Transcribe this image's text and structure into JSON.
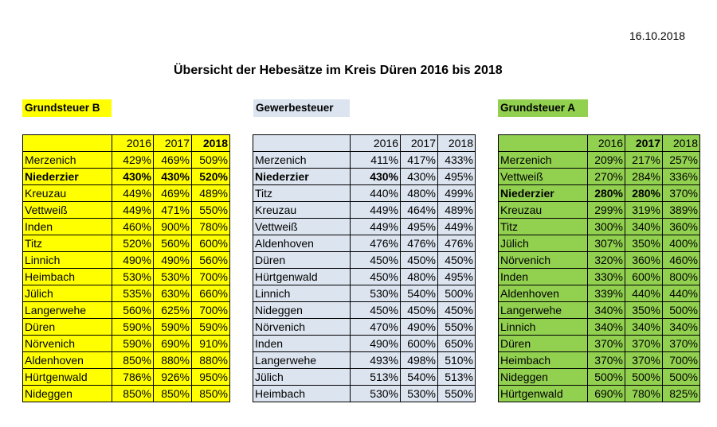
{
  "date": "16.10.2018",
  "title": "Übersicht der Hebesätze im Kreis Düren 2016 bis 2018",
  "sections": [
    {
      "id": "b",
      "label": "Grundsteuer B",
      "header": [
        "",
        "2016",
        "2017",
        "2018"
      ],
      "bold_header_col": 3,
      "rows": [
        {
          "name": "Merzenich",
          "v": [
            "429%",
            "469%",
            "509%"
          ],
          "bold": false
        },
        {
          "name": "Niederzier",
          "v": [
            "430%",
            "430%",
            "520%"
          ],
          "bold": true
        },
        {
          "name": "Kreuzau",
          "v": [
            "449%",
            "469%",
            "489%"
          ],
          "bold": false
        },
        {
          "name": "Vettweiß",
          "v": [
            "449%",
            "471%",
            "550%"
          ],
          "bold": false
        },
        {
          "name": "Inden",
          "v": [
            "460%",
            "900%",
            "780%"
          ],
          "bold": false
        },
        {
          "name": "Titz",
          "v": [
            "520%",
            "560%",
            "600%"
          ],
          "bold": false
        },
        {
          "name": "Linnich",
          "v": [
            "490%",
            "490%",
            "560%"
          ],
          "bold": false
        },
        {
          "name": "Heimbach",
          "v": [
            "530%",
            "530%",
            "700%"
          ],
          "bold": false
        },
        {
          "name": "Jülich",
          "v": [
            "535%",
            "630%",
            "660%"
          ],
          "bold": false
        },
        {
          "name": "Langerwehe",
          "v": [
            "560%",
            "625%",
            "700%"
          ],
          "bold": false
        },
        {
          "name": "Düren",
          "v": [
            "590%",
            "590%",
            "590%"
          ],
          "bold": false
        },
        {
          "name": "Nörvenich",
          "v": [
            "590%",
            "690%",
            "910%"
          ],
          "bold": false
        },
        {
          "name": "Aldenhoven",
          "v": [
            "850%",
            "880%",
            "880%"
          ],
          "bold": false
        },
        {
          "name": "Hürtgenwald",
          "v": [
            "786%",
            "926%",
            "950%"
          ],
          "bold": false
        },
        {
          "name": "Nideggen",
          "v": [
            "850%",
            "850%",
            "850%"
          ],
          "bold": false
        }
      ]
    },
    {
      "id": "gw",
      "label": "Gewerbesteuer",
      "header": [
        "",
        "2016",
        "2017",
        "2018"
      ],
      "bold_header_col": -1,
      "rows": [
        {
          "name": "Merzenich",
          "v": [
            "411%",
            "417%",
            "433%"
          ],
          "bold": false
        },
        {
          "name": "Niederzier",
          "v": [
            "430%",
            "430%",
            "495%"
          ],
          "bold": true,
          "bold_cols": 1
        },
        {
          "name": "Titz",
          "v": [
            "440%",
            "480%",
            "499%"
          ],
          "bold": false
        },
        {
          "name": "Kreuzau",
          "v": [
            "449%",
            "464%",
            "489%"
          ],
          "bold": false
        },
        {
          "name": "Vettweiß",
          "v": [
            "449%",
            "495%",
            "449%"
          ],
          "bold": false
        },
        {
          "name": "Aldenhoven",
          "v": [
            "476%",
            "476%",
            "476%"
          ],
          "bold": false
        },
        {
          "name": "Düren",
          "v": [
            "450%",
            "450%",
            "450%"
          ],
          "bold": false
        },
        {
          "name": "Hürtgenwald",
          "v": [
            "450%",
            "480%",
            "495%"
          ],
          "bold": false
        },
        {
          "name": "Linnich",
          "v": [
            "530%",
            "540%",
            "500%"
          ],
          "bold": false
        },
        {
          "name": "Nideggen",
          "v": [
            "450%",
            "450%",
            "450%"
          ],
          "bold": false
        },
        {
          "name": "Nörvenich",
          "v": [
            "470%",
            "490%",
            "550%"
          ],
          "bold": false
        },
        {
          "name": "Inden",
          "v": [
            "490%",
            "600%",
            "650%"
          ],
          "bold": false
        },
        {
          "name": "Langerwehe",
          "v": [
            "493%",
            "498%",
            "510%"
          ],
          "bold": false
        },
        {
          "name": "Jülich",
          "v": [
            "513%",
            "540%",
            "513%"
          ],
          "bold": false
        },
        {
          "name": "Heimbach",
          "v": [
            "530%",
            "530%",
            "550%"
          ],
          "bold": false
        }
      ]
    },
    {
      "id": "a",
      "label": "Grundsteuer A",
      "header": [
        "",
        "2016",
        "2017",
        "2018"
      ],
      "bold_header_col": 2,
      "rows": [
        {
          "name": "Merzenich",
          "v": [
            "209%",
            "217%",
            "257%"
          ],
          "bold": false
        },
        {
          "name": "Vettweiß",
          "v": [
            "270%",
            "284%",
            "336%"
          ],
          "bold": false
        },
        {
          "name": "Niederzier",
          "v": [
            "280%",
            "280%",
            "370%"
          ],
          "bold": true,
          "bold_cols": 2
        },
        {
          "name": "Kreuzau",
          "v": [
            "299%",
            "319%",
            "389%"
          ],
          "bold": false
        },
        {
          "name": "Titz",
          "v": [
            "300%",
            "340%",
            "360%"
          ],
          "bold": false
        },
        {
          "name": "Jülich",
          "v": [
            "307%",
            "350%",
            "400%"
          ],
          "bold": false
        },
        {
          "name": "Nörvenich",
          "v": [
            "320%",
            "360%",
            "460%"
          ],
          "bold": false
        },
        {
          "name": "Inden",
          "v": [
            "330%",
            "600%",
            "800%"
          ],
          "bold": false
        },
        {
          "name": "Aldenhoven",
          "v": [
            "339%",
            "440%",
            "440%"
          ],
          "bold": false
        },
        {
          "name": "Langerwehe",
          "v": [
            "340%",
            "350%",
            "500%"
          ],
          "bold": false
        },
        {
          "name": "Linnich",
          "v": [
            "340%",
            "340%",
            "340%"
          ],
          "bold": false
        },
        {
          "name": "Düren",
          "v": [
            "370%",
            "370%",
            "370%"
          ],
          "bold": false
        },
        {
          "name": "Heimbach",
          "v": [
            "370%",
            "370%",
            "700%"
          ],
          "bold": false
        },
        {
          "name": "Nideggen",
          "v": [
            "500%",
            "500%",
            "500%"
          ],
          "bold": false
        },
        {
          "name": "Hürtgenwald",
          "v": [
            "690%",
            "780%",
            "825%"
          ],
          "bold": false
        }
      ]
    }
  ],
  "colors": {
    "grundsteuer_b": "#ffff00",
    "gewerbesteuer": "#dce4ef",
    "grundsteuer_a": "#92d050"
  }
}
